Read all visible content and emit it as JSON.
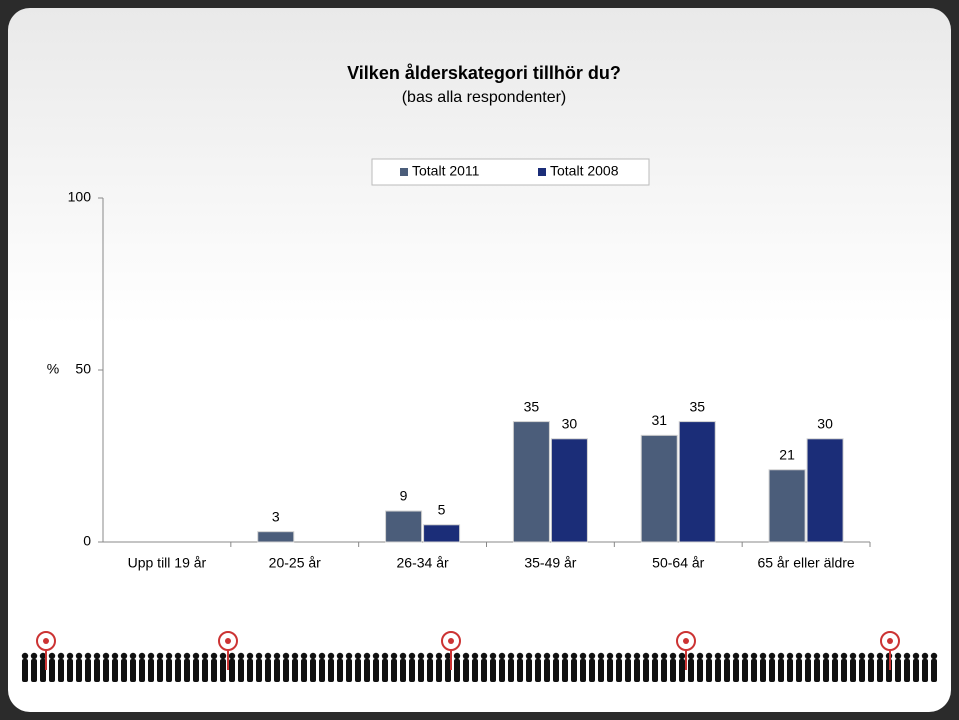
{
  "chart_data": {
    "type": "bar",
    "title": "Vilken ålderskategori tillhör du?",
    "subtitle": "(bas alla respondenter)",
    "y_label": "%",
    "categories": [
      "Upp till 19 år",
      "20-25 år",
      "26-34 år",
      "35-49 år",
      "50-64 år",
      "65 år eller äldre"
    ],
    "series": [
      {
        "name": "Totalt 2011",
        "color": "#4b5d7a",
        "values": [
          null,
          3,
          9,
          35,
          31,
          21
        ]
      },
      {
        "name": "Totalt 2008",
        "color": "#1b2d78",
        "values": [
          null,
          null,
          5,
          30,
          35,
          30
        ]
      }
    ],
    "ylim": [
      0,
      100
    ],
    "yticks": [
      0,
      50,
      100
    ],
    "legend": "top"
  }
}
